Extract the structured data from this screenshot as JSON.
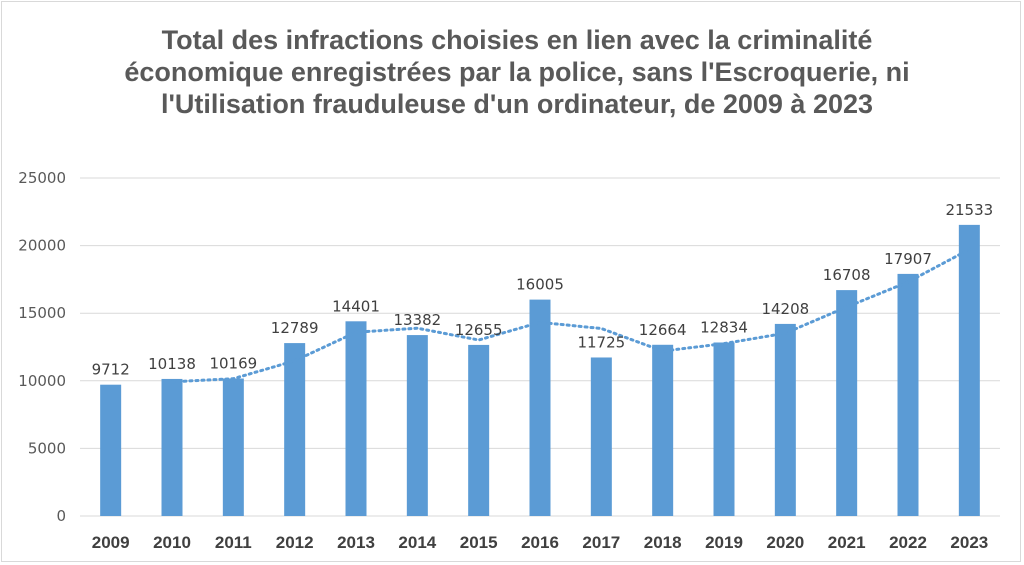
{
  "chart_data": {
    "type": "bar",
    "title": "Total des infractions choisies en lien avec la criminalité économique enregistrées par la police, sans l'Escroquerie, ni l'Utilisation frauduleuse d'un ordinateur, de 2009 à 2023",
    "categories": [
      "2009",
      "2010",
      "2011",
      "2012",
      "2013",
      "2014",
      "2015",
      "2016",
      "2017",
      "2018",
      "2019",
      "2020",
      "2021",
      "2022",
      "2023"
    ],
    "values": [
      9712,
      10138,
      10169,
      12789,
      14401,
      13382,
      12655,
      16005,
      11725,
      12664,
      12834,
      14208,
      16708,
      17907,
      21533
    ],
    "ylim": [
      0,
      25000
    ],
    "yticks": [
      0,
      5000,
      10000,
      15000,
      20000,
      25000
    ],
    "xlabel": "",
    "ylabel": "",
    "grid": true,
    "trendline": "moving-average",
    "colors": {
      "bar": "#5b9bd5",
      "trend": "#5b9bd5",
      "grid": "#d9d9d9"
    }
  }
}
